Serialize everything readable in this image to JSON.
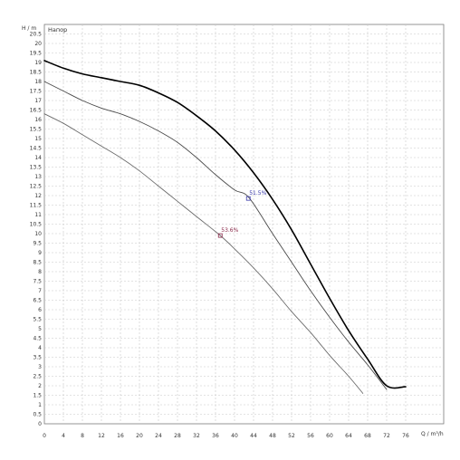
{
  "chart_data": {
    "type": "line",
    "title": "Напор",
    "xlabel": "Q / m³/h",
    "ylabel": "H / m",
    "xlim": [
      0,
      84
    ],
    "ylim": [
      0,
      21
    ],
    "grid": true,
    "x_ticks": [
      0,
      4,
      8,
      12,
      16,
      20,
      24,
      28,
      32,
      36,
      40,
      44,
      48,
      52,
      56,
      60,
      64,
      68,
      72,
      76
    ],
    "y_ticks": [
      0,
      0.5,
      1,
      1.5,
      2,
      2.5,
      3,
      3.5,
      4,
      4.5,
      5,
      5.5,
      6,
      6.5,
      7,
      7.5,
      8,
      8.5,
      9,
      9.5,
      10,
      10.5,
      11,
      11.5,
      12,
      12.5,
      13,
      13.5,
      14,
      14.5,
      15,
      15.5,
      16,
      16.5,
      17,
      17.5,
      18,
      18.5,
      19,
      19.5,
      20,
      20.5
    ],
    "series": [
      {
        "color": "#000000",
        "points": [
          [
            0,
            19.1
          ],
          [
            4,
            18.7
          ],
          [
            8,
            18.4
          ],
          [
            12,
            18.2
          ],
          [
            16,
            18.0
          ],
          [
            20,
            17.8
          ],
          [
            24,
            17.4
          ],
          [
            28,
            16.9
          ],
          [
            32,
            16.2
          ],
          [
            36,
            15.4
          ],
          [
            40,
            14.4
          ],
          [
            44,
            13.2
          ],
          [
            48,
            11.8
          ],
          [
            52,
            10.2
          ],
          [
            56,
            8.4
          ],
          [
            60,
            6.6
          ],
          [
            64,
            4.9
          ],
          [
            68,
            3.4
          ],
          [
            72,
            2.0
          ],
          [
            76,
            1.95
          ]
        ]
      },
      {
        "color": "#4a4a4a",
        "points": [
          [
            0,
            18.0
          ],
          [
            4,
            17.5
          ],
          [
            8,
            17.0
          ],
          [
            12,
            16.6
          ],
          [
            16,
            16.3
          ],
          [
            20,
            15.9
          ],
          [
            24,
            15.4
          ],
          [
            28,
            14.8
          ],
          [
            32,
            14.0
          ],
          [
            36,
            13.1
          ],
          [
            40,
            12.3
          ],
          [
            43,
            11.9
          ],
          [
            48,
            10.0
          ],
          [
            52,
            8.5
          ],
          [
            56,
            7.0
          ],
          [
            60,
            5.6
          ],
          [
            64,
            4.3
          ],
          [
            68,
            3.1
          ],
          [
            72,
            1.8
          ]
        ]
      },
      {
        "color": "#6b6b6b",
        "points": [
          [
            0,
            16.3
          ],
          [
            4,
            15.8
          ],
          [
            8,
            15.2
          ],
          [
            12,
            14.6
          ],
          [
            16,
            14.0
          ],
          [
            20,
            13.3
          ],
          [
            24,
            12.5
          ],
          [
            28,
            11.7
          ],
          [
            32,
            10.9
          ],
          [
            37,
            9.9
          ],
          [
            40,
            9.2
          ],
          [
            44,
            8.2
          ],
          [
            48,
            7.1
          ],
          [
            52,
            5.9
          ],
          [
            56,
            4.8
          ],
          [
            60,
            3.6
          ],
          [
            64,
            2.5
          ],
          [
            67,
            1.6
          ]
        ]
      }
    ],
    "annotations": [
      {
        "label": "51.5%",
        "x": 42.9,
        "y": 11.85,
        "color": "#3a3aaa"
      },
      {
        "label": "53.6%",
        "x": 37.0,
        "y": 9.9,
        "color": "#8a2a4a"
      }
    ]
  }
}
